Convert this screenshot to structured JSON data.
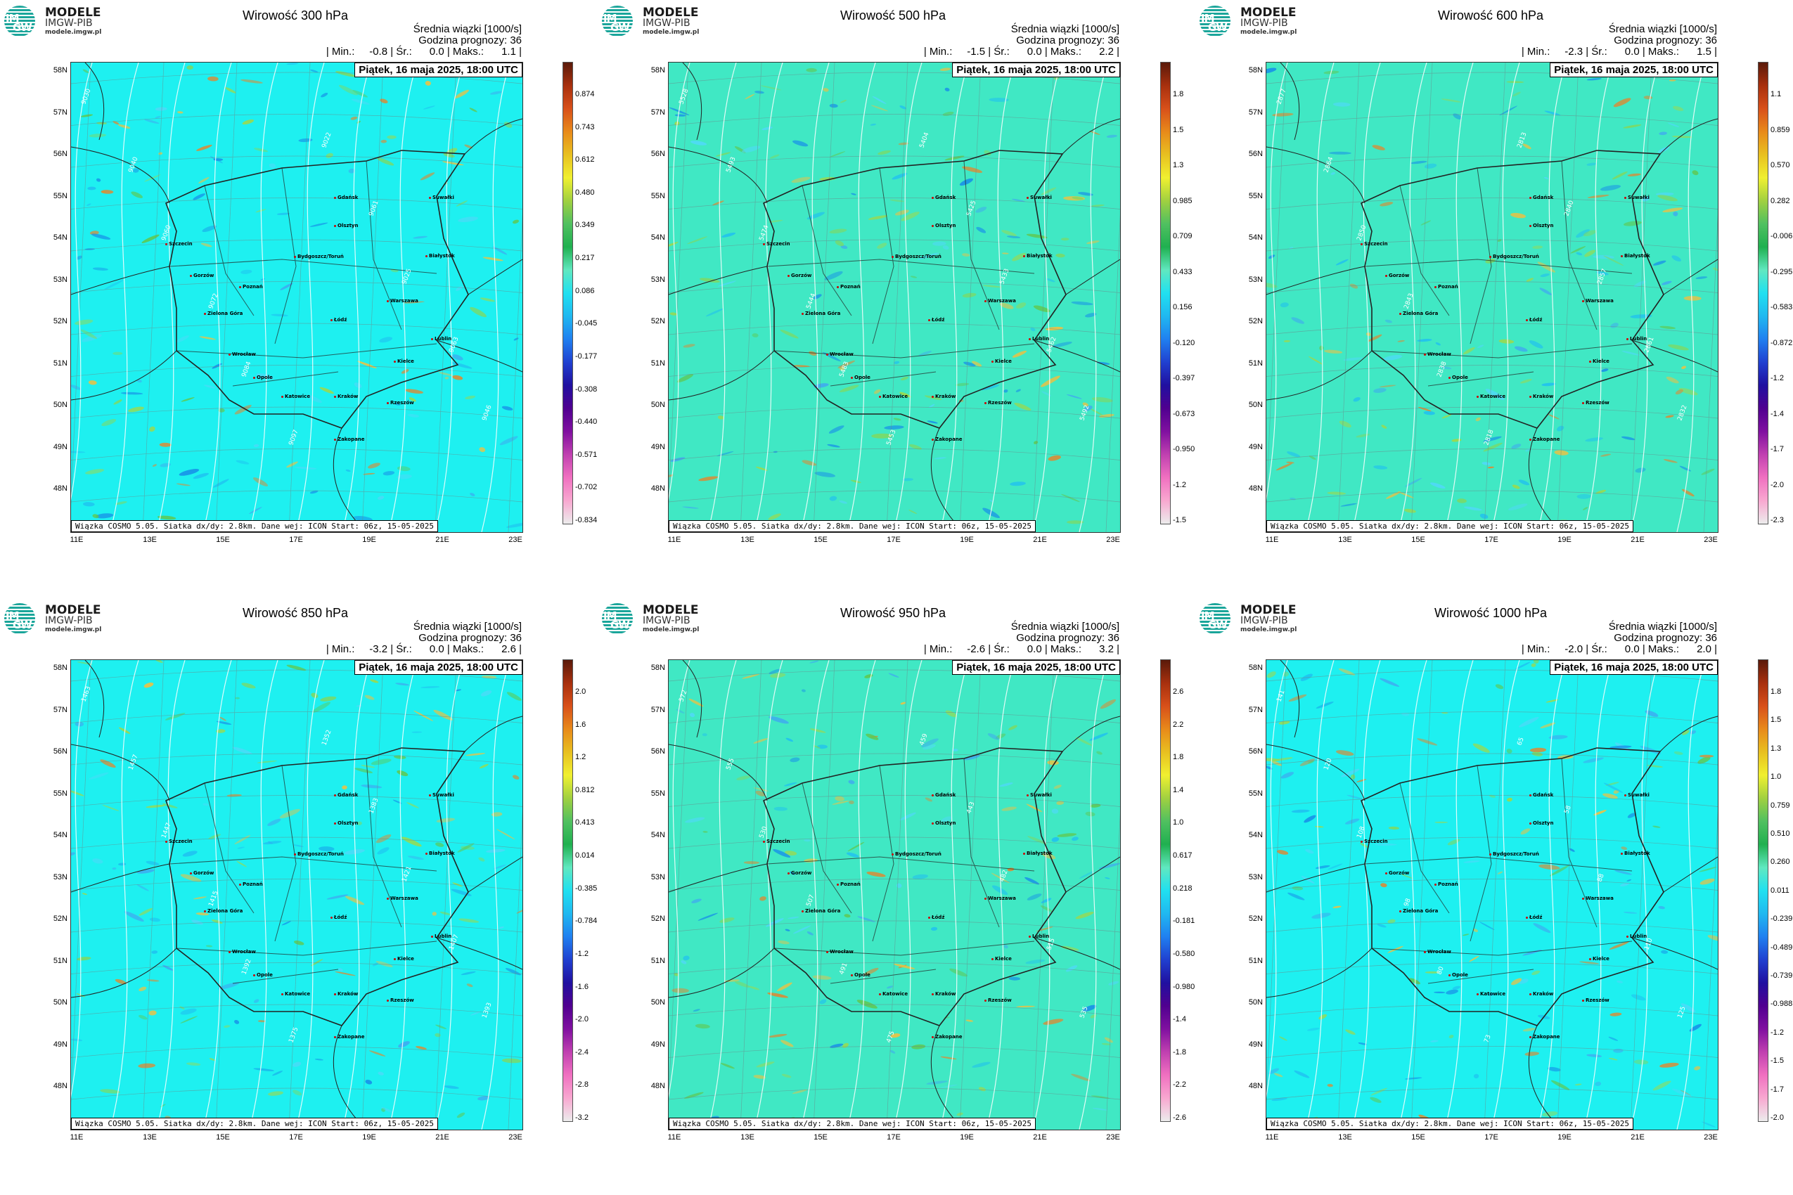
{
  "logo": {
    "mark_top": "IM",
    "mark_bottom": "GW",
    "line1": "MODELE",
    "line2": "IMGW-PIB",
    "line3": "modele.imgw.pl"
  },
  "colors": {
    "map_cyan": "#1ef0f0",
    "map_teal": "#40e8c4",
    "contour": "#ffffff",
    "border": "#222222"
  },
  "common": {
    "header_line1": "Średnia wiązki [1000/s]",
    "header_line2": "Godzina prognozy: 36",
    "date": "Piątek, 16 maja 2025, 18:00 UTC",
    "footer": "Wiązka COSMO 5.05. Siatka dx/dy: 2.8km. Dane wej: ICON Start: 06z, 15-05-2025",
    "lat_labels": [
      "58N",
      "57N",
      "56N",
      "55N",
      "54N",
      "53N",
      "52N",
      "51N",
      "50N",
      "49N",
      "48N"
    ],
    "lon_labels": [
      "11E",
      "13E",
      "15E",
      "17E",
      "19E",
      "21E",
      "23E"
    ],
    "cities": [
      "Gdańsk",
      "Olsztyn",
      "Białystok",
      "Szczecin",
      "Bydgoszcz/Toruń",
      "Gorzów",
      "Poznań",
      "Warszawa",
      "Zielona Góra",
      "Łódź",
      "Lublin",
      "Wrocław",
      "Kielce",
      "Opole",
      "Katowice",
      "Kraków",
      "Rzeszów",
      "Zakopane",
      "Suwałki"
    ]
  },
  "panels": [
    {
      "title": "Wirowość 300 hPa",
      "stats": "| Min.:     -0.8 | Śr.:      0.0 | Maks.:      1.1 |",
      "background": "cyan",
      "colorbar_labels": [
        "0.874",
        "0.743",
        "0.612",
        "0.480",
        "0.349",
        "0.217",
        "0.086",
        "-0.045",
        "-0.177",
        "-0.308",
        "-0.440",
        "-0.571",
        "-0.702",
        "-0.834"
      ],
      "contour_labels": [
        "9030",
        "9040",
        "9060",
        "9072",
        "9084",
        "9097",
        "9022",
        "9061",
        "9025",
        "9063",
        "9046"
      ]
    },
    {
      "title": "Wirowość 500 hPa",
      "stats": "| Min.:     -1.5 | Śr.:      0.0 | Maks.:      2.2 |",
      "background": "teal",
      "colorbar_labels": [
        "1.8",
        "1.5",
        "1.3",
        "0.985",
        "0.709",
        "0.433",
        "0.156",
        "-0.120",
        "-0.397",
        "-0.673",
        "-0.950",
        "-1.2",
        "-1.5"
      ],
      "contour_labels": [
        "5528",
        "5493",
        "5474",
        "5444",
        "5483",
        "5453",
        "5404",
        "5425",
        "5433",
        "5462",
        "5492"
      ]
    },
    {
      "title": "Wirowość 600 hPa",
      "stats": "| Min.:     -2.3 | Śr.:      0.0 | Maks.:      1.5 |",
      "background": "teal",
      "colorbar_labels": [
        "1.1",
        "0.859",
        "0.570",
        "0.282",
        "-0.006",
        "-0.295",
        "-0.583",
        "-0.872",
        "-1.2",
        "-1.4",
        "-1.7",
        "-2.0",
        "-2.3"
      ],
      "contour_labels": [
        "2877",
        "2864",
        "2850",
        "2843",
        "2838",
        "2818",
        "2813",
        "2840",
        "2857",
        "2861",
        "2832"
      ]
    },
    {
      "title": "Wirowość 850 hPa",
      "stats": "| Min.:     -3.2 | Śr.:      0.0 | Maks.:      2.6 |",
      "background": "cyan",
      "colorbar_labels": [
        "2.0",
        "1.6",
        "1.2",
        "0.812",
        "0.413",
        "0.014",
        "-0.385",
        "-0.784",
        "-1.2",
        "-1.6",
        "-2.0",
        "-2.4",
        "-2.8",
        "-3.2"
      ],
      "contour_labels": [
        "1463",
        "1457",
        "1447",
        "1415",
        "1392",
        "1375",
        "1352",
        "1383",
        "1421",
        "1407",
        "1393"
      ]
    },
    {
      "title": "Wirowość 950 hPa",
      "stats": "| Min.:     -2.6 | Śr.:      0.0 | Maks.:      3.2 |",
      "background": "teal",
      "colorbar_labels": [
        "2.6",
        "2.2",
        "1.8",
        "1.4",
        "1.0",
        "0.617",
        "0.218",
        "-0.181",
        "-0.580",
        "-0.980",
        "-1.4",
        "-1.8",
        "-2.2",
        "-2.6"
      ],
      "contour_labels": [
        "572",
        "555",
        "530",
        "507",
        "491",
        "475",
        "459",
        "443",
        "482",
        "515",
        "535"
      ]
    },
    {
      "title": "Wirowość 1000 hPa",
      "stats": "| Min.:     -2.0 | Śr.:      0.0 | Maks.:      2.0 |",
      "background": "cyan",
      "colorbar_labels": [
        "1.8",
        "1.5",
        "1.3",
        "1.0",
        "0.759",
        "0.510",
        "0.260",
        "0.011",
        "-0.239",
        "-0.489",
        "-0.739",
        "-0.988",
        "-1.2",
        "-1.5",
        "-1.7",
        "-2.0"
      ],
      "contour_labels": [
        "141",
        "120",
        "108",
        "98",
        "80",
        "73",
        "65",
        "58",
        "88",
        "110",
        "125"
      ]
    }
  ]
}
